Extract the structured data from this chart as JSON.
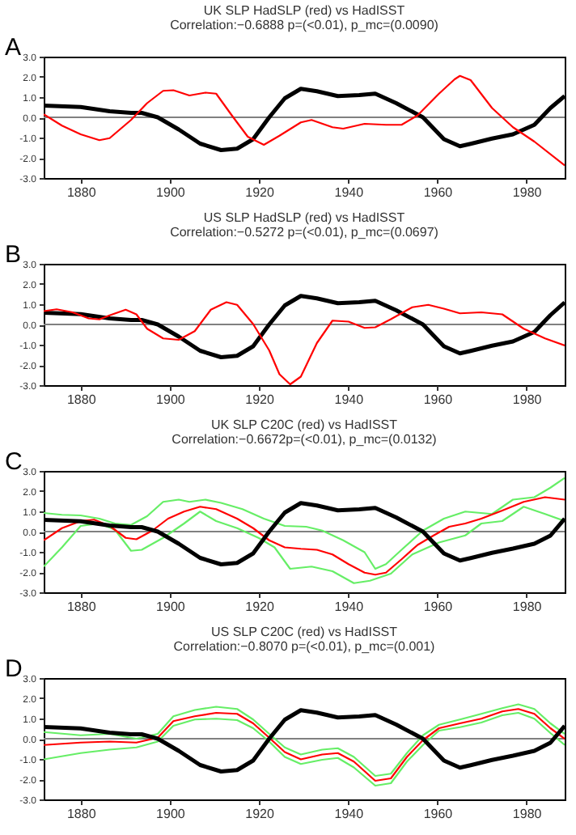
{
  "chart_data": [
    {
      "type": "line",
      "title": "UK SLP HadSLP (red)  vs HadISST",
      "subtitle": "Correlation:−0.6888 p=(<0.01), p_mc=(0.0090)",
      "annotations": [
        "A"
      ],
      "xlim": [
        1871.7,
        1988.6
      ],
      "xticks": [
        1880,
        1900,
        1920,
        1940,
        1960,
        1980
      ],
      "ylim": [
        -3,
        3
      ],
      "yticks": [
        {
          "value": -3,
          "label": "-3.0"
        },
        {
          "value": -2,
          "label": "-2.0"
        },
        {
          "value": -1,
          "label": "-1.0"
        },
        {
          "value": 0,
          "label": "0.0"
        },
        {
          "value": 1,
          "label": "1.0"
        },
        {
          "value": 2,
          "label": "2.0"
        },
        {
          "value": 3,
          "label": "3.0"
        }
      ],
      "grid": false,
      "ref_lines": [
        {
          "axis": "y",
          "value": 0,
          "color": "#808080"
        }
      ],
      "series": [
        {
          "color": "#000000",
          "x": [
            1871.7,
            1880,
            1886.5,
            1891.3,
            1893.7,
            1897.3,
            1902,
            1906.8,
            1911.5,
            1915.1,
            1918.7,
            1922.3,
            1925.8,
            1929.4,
            1933,
            1937.7,
            1942.5,
            1946.1,
            1950.8,
            1956.8,
            1961.5,
            1965.1,
            1967.5,
            1972.3,
            1977,
            1981.8,
            1985.4,
            1988.6
          ],
          "values": [
            0.58,
            0.51,
            0.3,
            0.22,
            0.22,
            0,
            -0.6,
            -1.3,
            -1.62,
            -1.55,
            -1.08,
            0,
            0.94,
            1.41,
            1.29,
            1.05,
            1.1,
            1.17,
            0.7,
            0,
            -1.08,
            -1.43,
            -1.31,
            -1.05,
            -0.84,
            -0.37,
            0.46,
            1.05
          ]
        },
        {
          "color": "#ff0000",
          "x": [
            1871.7,
            1875.8,
            1880,
            1884.2,
            1886.5,
            1891.3,
            1894.9,
            1898.5,
            1900.8,
            1904.4,
            1908,
            1910.4,
            1913.9,
            1917.5,
            1921.1,
            1924.6,
            1929.4,
            1931.8,
            1936.5,
            1938.9,
            1943.7,
            1948.5,
            1952,
            1955.6,
            1960.4,
            1963.9,
            1965.1,
            1967.5,
            1972.3,
            1977,
            1981.8,
            1988.6
          ],
          "values": [
            0.15,
            -0.41,
            -0.84,
            -1.13,
            -1.03,
            -0.13,
            0.7,
            1.31,
            1.34,
            1.08,
            1.22,
            1.17,
            0.1,
            -0.96,
            -1.36,
            -0.91,
            -0.25,
            -0.13,
            -0.49,
            -0.56,
            -0.32,
            -0.37,
            -0.37,
            0.1,
            1.17,
            1.88,
            2.05,
            1.84,
            0.46,
            -0.49,
            -1.2,
            -2.38
          ]
        }
      ]
    },
    {
      "type": "line",
      "title": "US SLP HadSLP (red) vs HadISST",
      "subtitle": "Correlation:−0.5272 p=(<0.01), p_mc=(0.0697)",
      "annotations": [
        "B"
      ],
      "xlim": [
        1871.7,
        1988.6
      ],
      "xticks": [
        1880,
        1900,
        1920,
        1940,
        1960,
        1980
      ],
      "ylim": [
        -3,
        3
      ],
      "yticks": [
        {
          "value": -3,
          "label": "-3.0"
        },
        {
          "value": -2,
          "label": "-2.0"
        },
        {
          "value": -1,
          "label": "-1.0"
        },
        {
          "value": 0,
          "label": "0.0"
        },
        {
          "value": 1,
          "label": "1.0"
        },
        {
          "value": 2,
          "label": "2.0"
        },
        {
          "value": 3,
          "label": "3.0"
        }
      ],
      "grid": false,
      "ref_lines": [
        {
          "axis": "y",
          "value": 0,
          "color": "#808080"
        }
      ],
      "series": [
        {
          "color": "#000000",
          "x": [
            1871.7,
            1880,
            1886.5,
            1891.3,
            1893.7,
            1897.3,
            1902,
            1906.8,
            1911.5,
            1915.1,
            1918.7,
            1922.3,
            1925.8,
            1929.4,
            1933,
            1937.7,
            1942.5,
            1946.1,
            1950.8,
            1956.8,
            1961.5,
            1965.1,
            1967.5,
            1972.3,
            1977,
            1981.8,
            1985.4,
            1988.6
          ],
          "values": [
            0.58,
            0.51,
            0.3,
            0.22,
            0.22,
            0,
            -0.6,
            -1.3,
            -1.62,
            -1.55,
            -1.08,
            0,
            0.94,
            1.41,
            1.29,
            1.05,
            1.1,
            1.17,
            0.7,
            0,
            -1.08,
            -1.43,
            -1.31,
            -1.05,
            -0.84,
            -0.37,
            0.46,
            1.09
          ]
        },
        {
          "color": "#ff0000",
          "x": [
            1871.7,
            1874.6,
            1878.2,
            1881.8,
            1884.2,
            1886.5,
            1890.1,
            1892.5,
            1894.9,
            1898.5,
            1902,
            1905.6,
            1909.2,
            1912.7,
            1915.1,
            1918.7,
            1922.3,
            1924.6,
            1927,
            1929.4,
            1933,
            1936.5,
            1940.1,
            1943.7,
            1946.1,
            1949.6,
            1954.4,
            1958,
            1961.5,
            1965.1,
            1969.9,
            1974.6,
            1979.4,
            1984.2,
            1988.6
          ],
          "values": [
            0.66,
            0.75,
            0.6,
            0.3,
            0.25,
            0.45,
            0.73,
            0.5,
            -0.21,
            -0.69,
            -0.76,
            -0.33,
            0.73,
            1.1,
            0.97,
            0.02,
            -1.28,
            -2.46,
            -2.96,
            -2.58,
            -0.92,
            0.19,
            0.14,
            -0.17,
            -0.14,
            0.26,
            0.85,
            0.97,
            0.78,
            0.55,
            0.6,
            0.5,
            -0.21,
            -0.69,
            -1.04
          ]
        }
      ]
    },
    {
      "type": "line",
      "title": "UK SLP C20C  (red) vs HadISST",
      "subtitle": "Correlation:−0.6672p=(<0.01), p_mc=(0.0132)",
      "annotations": [
        "C"
      ],
      "xlim": [
        1871.7,
        1988.6
      ],
      "xticks": [
        1880,
        1900,
        1920,
        1940,
        1960,
        1980
      ],
      "ylim": [
        -3,
        3
      ],
      "yticks": [
        {
          "value": -3,
          "label": "-3.0"
        },
        {
          "value": -2,
          "label": "-2.0"
        },
        {
          "value": -1,
          "label": "-1.0"
        },
        {
          "value": 0,
          "label": "0.0"
        },
        {
          "value": 1,
          "label": "1.0"
        },
        {
          "value": 2,
          "label": "2.0"
        },
        {
          "value": 3,
          "label": "3.0"
        }
      ],
      "grid": false,
      "ref_lines": [
        {
          "axis": "y",
          "value": 0,
          "color": "#808080"
        }
      ],
      "series": [
        {
          "color": "#66ee66",
          "x": [
            1871.7,
            1875.8,
            1880,
            1884.2,
            1887.7,
            1891.3,
            1894.9,
            1898.5,
            1902,
            1904.4,
            1908,
            1911.5,
            1916.3,
            1921.1,
            1925.8,
            1930.6,
            1934.2,
            1938.9,
            1943.7,
            1946.1,
            1948.5,
            1952,
            1956.8,
            1961.5,
            1966.3,
            1972.3,
            1977,
            1981.8,
            1985.4,
            1988.6
          ],
          "values": [
            0.92,
            0.83,
            0.8,
            0.64,
            0.4,
            0.33,
            0.76,
            1.47,
            1.58,
            1.47,
            1.58,
            1.42,
            1.11,
            0.64,
            0.28,
            0.24,
            0.05,
            -0.43,
            -1.02,
            -1.84,
            -1.61,
            -0.9,
            0.05,
            0.64,
            0.99,
            0.87,
            1.58,
            1.7,
            2.17,
            2.65
          ]
        },
        {
          "color": "#66ee66",
          "x": [
            1871.7,
            1875.8,
            1880,
            1884.2,
            1887.7,
            1891.3,
            1893.7,
            1898.5,
            1903.2,
            1906.8,
            1910.4,
            1915.1,
            1919.9,
            1923.5,
            1927,
            1931.8,
            1936.5,
            1941.3,
            1944.9,
            1949.6,
            1954.4,
            1960.4,
            1966.3,
            1969.9,
            1974.6,
            1979.4,
            1984.2,
            1988.6
          ],
          "values": [
            -1.73,
            -0.78,
            0.28,
            0.4,
            0.09,
            -0.95,
            -0.9,
            -0.31,
            0.4,
            0.99,
            0.52,
            0.17,
            -0.31,
            -0.78,
            -1.84,
            -1.73,
            -1.96,
            -2.55,
            -2.43,
            -2.08,
            -1.13,
            -0.54,
            -0.19,
            0.4,
            0.52,
            1.23,
            0.87,
            0.52
          ]
        },
        {
          "color": "#ff0000",
          "x": [
            1871.7,
            1875.8,
            1880,
            1883,
            1886.5,
            1890.1,
            1892.5,
            1896.1,
            1899.6,
            1903.2,
            1906.8,
            1910.4,
            1915.1,
            1918.7,
            1922.3,
            1925.8,
            1929.4,
            1933,
            1936.5,
            1940.1,
            1943.7,
            1946.1,
            1948.5,
            1952,
            1955.6,
            1959.2,
            1962.7,
            1966.3,
            1969.9,
            1974.6,
            1979.4,
            1984.2,
            1988.6
          ],
          "values": [
            -0.43,
            0.17,
            0.52,
            0.59,
            0.28,
            -0.31,
            -0.38,
            0.05,
            0.64,
            0.99,
            1.23,
            1.11,
            0.64,
            0.17,
            -0.43,
            -0.78,
            -0.85,
            -0.9,
            -1.13,
            -1.61,
            -2.03,
            -2.13,
            -2.03,
            -1.37,
            -0.66,
            -0.19,
            0.24,
            0.4,
            0.64,
            1.04,
            1.47,
            1.7,
            1.58
          ]
        },
        {
          "color": "#000000",
          "x": [
            1871.7,
            1880,
            1886.5,
            1891.3,
            1893.7,
            1897.3,
            1902,
            1906.8,
            1911.5,
            1915.1,
            1918.7,
            1922.3,
            1925.8,
            1929.4,
            1933,
            1937.7,
            1942.5,
            1946.1,
            1950.8,
            1956.8,
            1961.5,
            1965.1,
            1967.5,
            1972.3,
            1977,
            1981.8,
            1985.4,
            1988.6
          ],
          "values": [
            0.58,
            0.51,
            0.3,
            0.22,
            0.22,
            0,
            -0.6,
            -1.3,
            -1.62,
            -1.55,
            -1.08,
            0,
            0.94,
            1.41,
            1.29,
            1.05,
            1.1,
            1.17,
            0.7,
            0,
            -1.08,
            -1.43,
            -1.31,
            -1.05,
            -0.84,
            -0.6,
            -0.2,
            0.64
          ]
        }
      ]
    },
    {
      "type": "line",
      "title": "US SLP C20C (red) vs HadISST",
      "subtitle": "Correlation:−0.8070 p=(<0.01), p_mc=(0.001)",
      "annotations": [
        "D"
      ],
      "xlim": [
        1871.7,
        1988.6
      ],
      "xticks": [
        1880,
        1900,
        1920,
        1940,
        1960,
        1980
      ],
      "ylim": [
        -3,
        3
      ],
      "yticks": [
        {
          "value": -3,
          "label": "-3.0"
        },
        {
          "value": -2,
          "label": "-2.0"
        },
        {
          "value": -1,
          "label": "-1.0"
        },
        {
          "value": 0,
          "label": "0.0"
        },
        {
          "value": 1,
          "label": "1.0"
        },
        {
          "value": 2,
          "label": "2.0"
        },
        {
          "value": 3,
          "label": "3.0"
        }
      ],
      "grid": false,
      "ref_lines": [
        {
          "axis": "y",
          "value": 0,
          "color": "#808080"
        }
      ],
      "series": [
        {
          "color": "#66ee66",
          "x": [
            1871.7,
            1880,
            1886.5,
            1892.5,
            1897.3,
            1900.8,
            1905.6,
            1910.4,
            1915.1,
            1918.7,
            1922.3,
            1925.8,
            1929.4,
            1934.2,
            1937.7,
            1941.3,
            1946.1,
            1949.6,
            1953.2,
            1956.8,
            1960.4,
            1965.1,
            1969.9,
            1974.6,
            1978.2,
            1981.8,
            1985.4,
            1988.6
          ],
          "values": [
            0.33,
            0.17,
            0.24,
            0,
            0.24,
            1.11,
            1.42,
            1.58,
            1.47,
            0.95,
            0.24,
            -0.43,
            -0.78,
            -0.54,
            -0.47,
            -0.9,
            -1.84,
            -1.73,
            -0.71,
            0.17,
            0.69,
            0.95,
            1.23,
            1.51,
            1.7,
            1.47,
            0.76,
            0.24
          ]
        },
        {
          "color": "#66ee66",
          "x": [
            1871.7,
            1880,
            1886.5,
            1892.5,
            1897.3,
            1900.8,
            1905.6,
            1910.4,
            1915.1,
            1918.7,
            1922.3,
            1925.8,
            1929.4,
            1934.2,
            1937.7,
            1941.3,
            1946.1,
            1949.6,
            1953.2,
            1956.8,
            1960.4,
            1965.1,
            1969.9,
            1974.6,
            1978.2,
            1981.8,
            1985.4,
            1988.6
          ],
          "values": [
            -1.02,
            -0.71,
            -0.54,
            -0.43,
            -0.14,
            0.64,
            0.95,
            0.99,
            0.92,
            0.52,
            -0.14,
            -0.9,
            -1.25,
            -1.04,
            -0.95,
            -1.42,
            -2.32,
            -2.2,
            -1.13,
            -0.31,
            0.4,
            0.57,
            0.8,
            1.16,
            1.28,
            0.99,
            0.28,
            -0.31
          ]
        },
        {
          "color": "#ff0000",
          "x": [
            1871.7,
            1880,
            1886.5,
            1892.5,
            1897.3,
            1900.8,
            1905.6,
            1910.4,
            1915.1,
            1918.7,
            1922.3,
            1925.8,
            1929.4,
            1934.2,
            1937.7,
            1941.3,
            1946.1,
            1949.6,
            1953.2,
            1956.8,
            1960.4,
            1965.1,
            1969.9,
            1974.6,
            1978.2,
            1981.8,
            1985.4,
            1988.6
          ],
          "values": [
            -0.31,
            -0.19,
            -0.14,
            -0.19,
            0.05,
            0.87,
            1.11,
            1.28,
            1.23,
            0.76,
            0.05,
            -0.66,
            -1.02,
            -0.78,
            -0.71,
            -1.13,
            -2.08,
            -1.96,
            -0.9,
            -0.07,
            0.52,
            0.76,
            0.99,
            1.35,
            1.47,
            1.23,
            0.52,
            0
          ]
        },
        {
          "color": "#000000",
          "x": [
            1871.7,
            1880,
            1886.5,
            1891.3,
            1893.7,
            1897.3,
            1902,
            1906.8,
            1911.5,
            1915.1,
            1918.7,
            1922.3,
            1925.8,
            1929.4,
            1933,
            1937.7,
            1942.5,
            1946.1,
            1950.8,
            1956.8,
            1961.5,
            1965.1,
            1967.5,
            1972.3,
            1977,
            1981.8,
            1985.4,
            1988.6
          ],
          "values": [
            0.58,
            0.51,
            0.3,
            0.22,
            0.22,
            0,
            -0.6,
            -1.3,
            -1.62,
            -1.55,
            -1.08,
            0,
            0.94,
            1.41,
            1.29,
            1.05,
            1.1,
            1.17,
            0.7,
            0,
            -1.08,
            -1.43,
            -1.31,
            -1.05,
            -0.84,
            -0.6,
            -0.2,
            0.64
          ]
        }
      ]
    }
  ]
}
